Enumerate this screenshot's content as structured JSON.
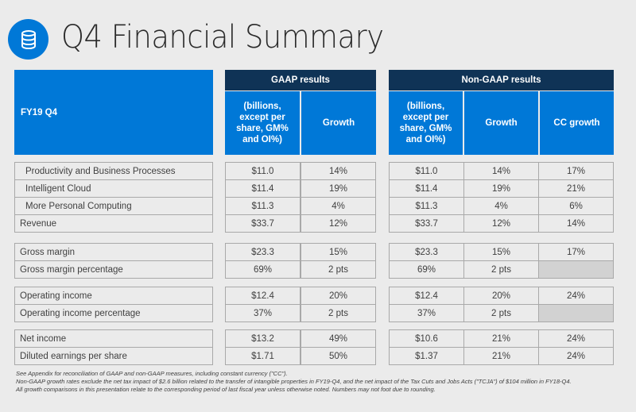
{
  "title": "Q4 Financial Summary",
  "header": {
    "period": "FY19 Q4",
    "gaap": "GAAP results",
    "nongaap": "Non-GAAP results",
    "units": "(billions, except per share, GM% and OI%)",
    "growth": "Growth",
    "cc_growth": "CC growth"
  },
  "groups": [
    [
      {
        "label": "Productivity and Business Processes",
        "indent": true,
        "gaap": [
          "$11.0",
          "14%"
        ],
        "nongaap": [
          "$11.0",
          "14%",
          "17%"
        ]
      },
      {
        "label": "Intelligent Cloud",
        "indent": true,
        "gaap": [
          "$11.4",
          "19%"
        ],
        "nongaap": [
          "$11.4",
          "19%",
          "21%"
        ]
      },
      {
        "label": "More Personal Computing",
        "indent": true,
        "gaap": [
          "$11.3",
          "4%"
        ],
        "nongaap": [
          "$11.3",
          "4%",
          "6%"
        ]
      },
      {
        "label": "Revenue",
        "indent": false,
        "gaap": [
          "$33.7",
          "12%"
        ],
        "nongaap": [
          "$33.7",
          "12%",
          "14%"
        ]
      }
    ],
    [
      {
        "label": "Gross margin",
        "indent": false,
        "gaap": [
          "$23.3",
          "15%"
        ],
        "nongaap": [
          "$23.3",
          "15%",
          "17%"
        ]
      },
      {
        "label": "Gross margin percentage",
        "indent": false,
        "gaap": [
          "69%",
          "2 pts"
        ],
        "nongaap": [
          "69%",
          "2 pts",
          ""
        ]
      }
    ],
    [
      {
        "label": "Operating income",
        "indent": false,
        "gaap": [
          "$12.4",
          "20%"
        ],
        "nongaap": [
          "$12.4",
          "20%",
          "24%"
        ]
      },
      {
        "label": "Operating income percentage",
        "indent": false,
        "gaap": [
          "37%",
          "2 pts"
        ],
        "nongaap": [
          "37%",
          "2 pts",
          ""
        ]
      }
    ],
    [
      {
        "label": "Net income",
        "indent": false,
        "gaap": [
          "$13.2",
          "49%"
        ],
        "nongaap": [
          "$10.6",
          "21%",
          "24%"
        ]
      },
      {
        "label": "Diluted earnings per share",
        "indent": false,
        "gaap": [
          "$1.71",
          "50%"
        ],
        "nongaap": [
          "$1.37",
          "21%",
          "24%"
        ]
      }
    ]
  ],
  "notes": [
    "See Appendix for reconciliation of GAAP and non-GAAP measures, including constant currency (\"CC\").",
    "Non-GAAP growth rates exclude the net tax impact of $2.6 billion related to the transfer of intangible properties in FY19-Q4, and the net impact of the Tax Cuts and Jobs Acts (\"TCJA\") of $104 million in FY18-Q4.",
    "All growth comparisons in this presentation relate to the corresponding period of last fiscal year unless otherwise noted. Numbers may not foot due to rounding."
  ]
}
